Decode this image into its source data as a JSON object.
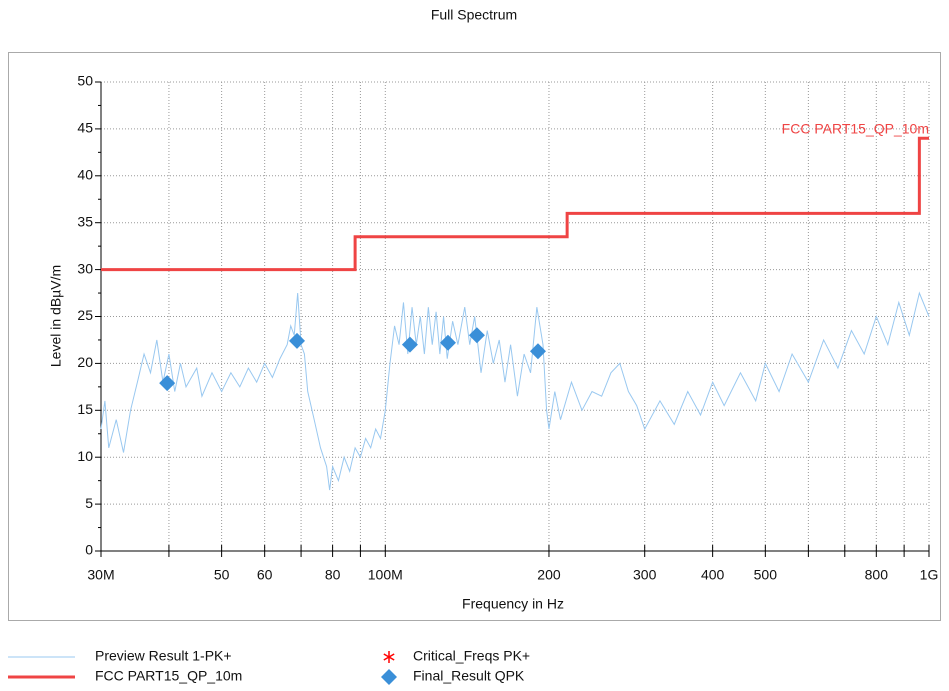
{
  "chart_data": {
    "type": "line",
    "title": "Full Spectrum",
    "x_label": "Frequency in Hz",
    "y_label": "Level in dBµV/m",
    "log_x": true,
    "grid": true,
    "xlim": [
      30000000,
      1000000000
    ],
    "ylim": [
      0,
      50
    ],
    "yticks": [
      0,
      5,
      10,
      15,
      20,
      25,
      30,
      35,
      40,
      45,
      50
    ],
    "xticks": [
      {
        "value": 30000000,
        "label": "30M"
      },
      {
        "value": 50000000,
        "label": "50"
      },
      {
        "value": 60000000,
        "label": "60"
      },
      {
        "value": 80000000,
        "label": "80"
      },
      {
        "value": 100000000,
        "label": "100M"
      },
      {
        "value": 200000000,
        "label": "200"
      },
      {
        "value": 300000000,
        "label": "300"
      },
      {
        "value": 400000000,
        "label": "400"
      },
      {
        "value": 500000000,
        "label": "500"
      },
      {
        "value": 800000000,
        "label": "800"
      },
      {
        "value": 1000000000,
        "label": "1G"
      }
    ],
    "xminor_ticks": [
      40000000,
      70000000,
      90000000,
      600000000,
      700000000,
      900000000
    ],
    "annotations": [
      {
        "text": "FCC PART15_QP_10m",
        "color": "#ef4444"
      }
    ],
    "series": [
      {
        "name": "Preview Result 1-PK+",
        "color": "#99c8f0",
        "marker": "line",
        "x": [
          30000000,
          30500000,
          31000000,
          32000000,
          33000000,
          34000000,
          35000000,
          36000000,
          37000000,
          38000000,
          39000000,
          40000000,
          41000000,
          42000000,
          43000000,
          45000000,
          46000000,
          48000000,
          50000000,
          52000000,
          54000000,
          56000000,
          58000000,
          60000000,
          62000000,
          64000000,
          66000000,
          67000000,
          68000000,
          69000000,
          70000000,
          71000000,
          72000000,
          74000000,
          76000000,
          78000000,
          79000000,
          80000000,
          82000000,
          84000000,
          86000000,
          88000000,
          90000000,
          92000000,
          94000000,
          96000000,
          98000000,
          100000000,
          102000000,
          104000000,
          106000000,
          108000000,
          110000000,
          112000000,
          114000000,
          116000000,
          118000000,
          120000000,
          122000000,
          124000000,
          126000000,
          128000000,
          130000000,
          133000000,
          136000000,
          140000000,
          143000000,
          146000000,
          150000000,
          154000000,
          158000000,
          162000000,
          166000000,
          170000000,
          175000000,
          180000000,
          185000000,
          190000000,
          195000000,
          198000000,
          200000000,
          205000000,
          210000000,
          220000000,
          230000000,
          240000000,
          250000000,
          260000000,
          270000000,
          280000000,
          290000000,
          300000000,
          320000000,
          340000000,
          360000000,
          380000000,
          400000000,
          420000000,
          450000000,
          480000000,
          500000000,
          530000000,
          560000000,
          600000000,
          640000000,
          680000000,
          720000000,
          760000000,
          800000000,
          840000000,
          880000000,
          920000000,
          960000000,
          1000000000
        ],
        "values": [
          13,
          16,
          11,
          14,
          10.5,
          15,
          18,
          21,
          19,
          22.5,
          18,
          21,
          17,
          20,
          17.5,
          19.5,
          16.5,
          19,
          17,
          19,
          17.5,
          19.5,
          18,
          20,
          18.5,
          20.5,
          22,
          24,
          23,
          27.5,
          22,
          21,
          17,
          14,
          11,
          9,
          6.5,
          9,
          7.5,
          10,
          8.5,
          11,
          10,
          12,
          11,
          13,
          12,
          15,
          20,
          24,
          22,
          26.5,
          21,
          26,
          22,
          25,
          21,
          26,
          22,
          25.5,
          21,
          25,
          20.5,
          24.5,
          22,
          26,
          22,
          25,
          19,
          23.5,
          20,
          22.5,
          18,
          22,
          16.5,
          21,
          19,
          26,
          22,
          15,
          13,
          17,
          14,
          18,
          15,
          17,
          16.5,
          19,
          20,
          17,
          15.5,
          13,
          16,
          13.5,
          17,
          14.5,
          18,
          15.5,
          19,
          16,
          20,
          17,
          21,
          18,
          22.5,
          19.5,
          23.5,
          21,
          25,
          22,
          26.5,
          23,
          27.5,
          25
        ]
      },
      {
        "name": "FCC PART15_QP_10m",
        "color": "#ef4444",
        "marker": "line",
        "x": [
          30000000,
          88000000,
          88000000,
          216000000,
          216000000,
          960000000,
          960000000,
          1000000000
        ],
        "values": [
          30,
          30,
          33.5,
          33.5,
          36,
          36,
          44,
          44
        ]
      },
      {
        "name": "Critical_Freqs PK+",
        "color": "#ff0000",
        "marker": "asterisk",
        "x": [],
        "values": []
      },
      {
        "name": "Final_Result QPK",
        "color": "#3a8fd8",
        "marker": "diamond",
        "x": [
          39700000,
          68800000,
          111000000,
          130400000,
          147400000,
          190900000
        ],
        "values": [
          17.9,
          22.4,
          22.0,
          22.2,
          23.0,
          21.3
        ]
      }
    ]
  }
}
